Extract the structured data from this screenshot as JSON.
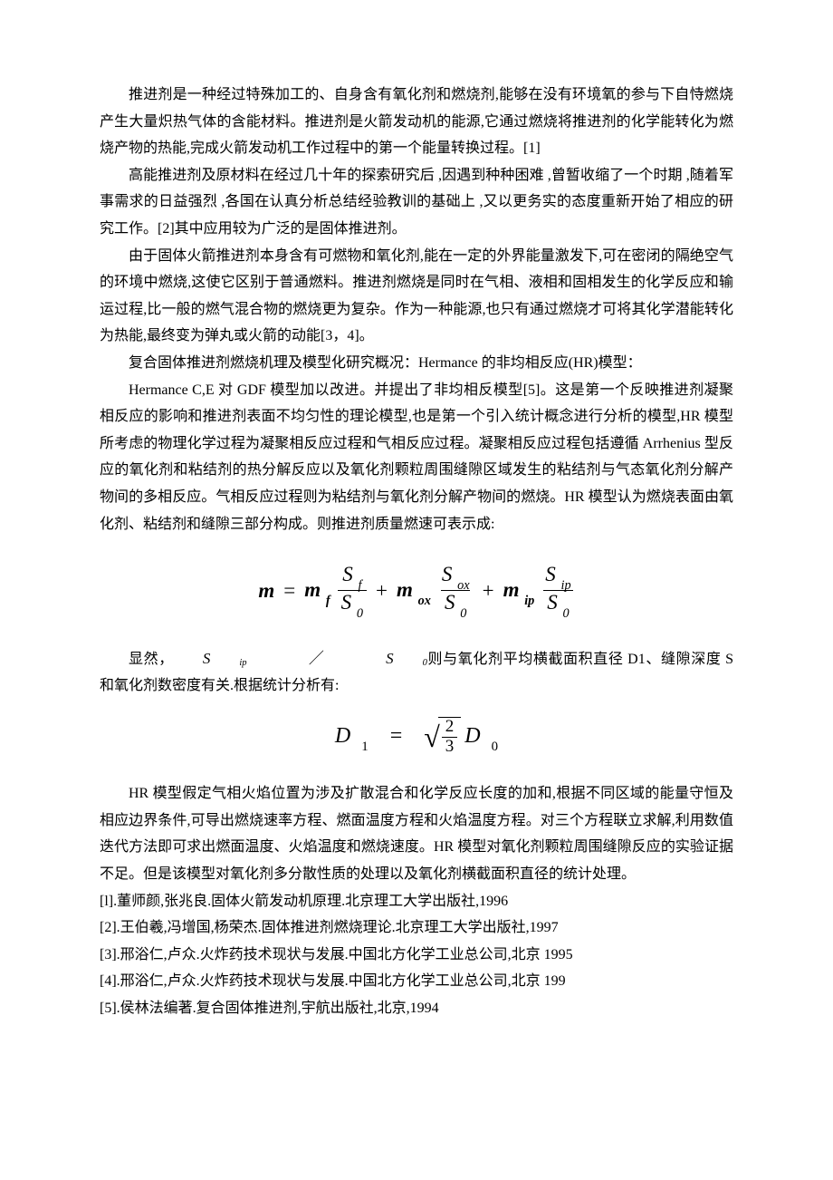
{
  "paragraphs": {
    "p1": "推进剂是一种经过特殊加工的、自身含有氧化剂和燃烧剂,能够在没有环境氧的参与下自恃燃烧产生大量炽热气体的含能材料。推进剂是火箭发动机的能源,它通过燃烧将推进剂的化学能转化为燃烧产物的热能,完成火箭发动机工作过程中的第一个能量转换过程。[1]",
    "p2": "高能推进剂及原材料在经过几十年的探索研究后 ,因遇到种种困难 ,曾暂收缩了一个时期 ,随着军事需求的日益强烈 ,各国在认真分析总结经验教训的基础上 ,又以更务实的态度重新开始了相应的研究工作。[2]其中应用较为广泛的是固体推进剂。",
    "p3": "由于固体火箭推进剂本身含有可燃物和氧化剂,能在一定的外界能量激发下,可在密闭的隔绝空气的环境中燃烧,这使它区别于普通燃料。推进剂燃烧是同时在气相、液相和固相发生的化学反应和输运过程,比一般的燃气混合物的燃烧更为复杂。作为一种能源,也只有通过燃烧才可将其化学潜能转化为热能,最终变为弹丸或火箭的动能[3，4]。",
    "p4": "复合固体推进剂燃烧机理及模型化研究概况：Hermance 的非均相反应(HR)模型：",
    "p5": "Hermance C,E 对 GDF 模型加以改进。并提出了非均相反模型[5]。这是第一个反映推进剂凝聚相反应的影响和推进剂表面不均匀性的理论模型,也是第一个引入统计概念进行分析的模型,HR 模型所考虑的物理化学过程为凝聚相反应过程和气相反应过程。凝聚相反应过程包括遵循 Arrhenius 型反应的氧化剂和粘结剂的热分解反应以及氧化剂颗粒周围缝隙区域发生的粘结剂与气态氧化剂分解产物间的多相反应。气相反应过程则为粘结剂与氧化剂分解产物间的燃烧。HR 模型认为燃烧表面由氧化剂、粘结剂和缝隙三部分构成。则推进剂质量燃速可表示成:",
    "p6a": "显然，",
    "p6b": "则与氧化剂平均横截面积直径 D1、缝隙深度 S 和氧化剂数密度有关.根据统计分析有:",
    "p7": "HR 模型假定气相火焰位置为涉及扩散混合和化学反应长度的加和,根据不同区域的能量守恒及相应边界条件,可导出燃烧速率方程、燃面温度方程和火焰温度方程。对三个方程联立求解,利用数值迭代方法即可求出燃面温度、火焰温度和燃烧速度。HR 模型对氧化剂颗粒周围缝隙反应的实验证据不足。但是该模型对氧化剂多分散性质的处理以及氧化剂横截面积直径的统计处理。"
  },
  "equation1": {
    "lhs": "m",
    "eq": "=",
    "terms": [
      {
        "coef_base": "m",
        "coef_sub": "f",
        "num_base": "S",
        "num_sub": "f",
        "den_base": "S",
        "den_sub": "0"
      },
      {
        "coef_base": "m",
        "coef_sub": "ox",
        "num_base": "S",
        "num_sub": "ox",
        "den_base": "S",
        "den_sub": "0"
      },
      {
        "coef_base": "m",
        "coef_sub": "ip",
        "num_base": "S",
        "num_sub": "ip",
        "den_base": "S",
        "den_sub": "0"
      }
    ],
    "plus": "+"
  },
  "inline_ratio": {
    "num_base": "S",
    "num_sub": "ip",
    "slash": "／",
    "den_base": "S",
    "den_sub": "0"
  },
  "equation2": {
    "lhs_base": "D",
    "lhs_sub": "1",
    "eq": "=",
    "frac_num": "2",
    "frac_den": "3",
    "rhs_base": "D",
    "rhs_sub": "0"
  },
  "references": {
    "r1": "[l].董师颜,张兆良.固体火箭发动机原理.北京理工大学出版社,1996",
    "r2": "[2].王伯羲,冯增国,杨荣杰.固体推进剂燃烧理论.北京理工大学出版社,1997",
    "r3": "[3].邢浴仁,卢众.火炸药技术现状与发展.中国北方化学工业总公司,北京 1995",
    "r4": "[4].邢浴仁,卢众.火炸药技术现状与发展.中国北方化学工业总公司,北京 199",
    "r5": "[5].侯林法编著.复合固体推进剂,宇航出版社,北京,1994"
  }
}
